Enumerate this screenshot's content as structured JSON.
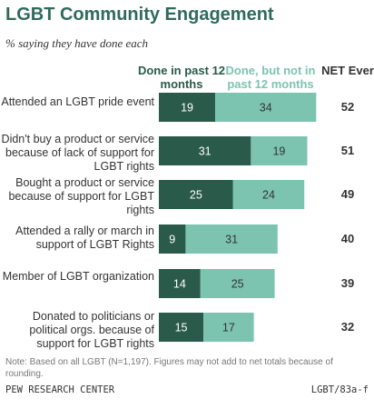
{
  "title": "LGBT Community Engagement",
  "subtitle": "% saying they have done each",
  "legend": {
    "dark": "Done in past 12 months",
    "light": "Done, but not in past 12 months",
    "net": "NET Ever"
  },
  "colors": {
    "dark": "#2a5a4a",
    "light": "#7cc4b0",
    "title": "#2f6b5a"
  },
  "chart_data": {
    "type": "bar",
    "orientation": "horizontal",
    "stacked": true,
    "categories": [
      "Attended an LGBT pride event",
      "Didn't buy a product or service because of lack of support for LGBT rights",
      "Bought a product or service because of support for LGBT rights",
      "Attended a rally or march in support of LGBT Rights",
      "Member of LGBT organization",
      "Donated to politicians or political orgs. because of support for LGBT rights"
    ],
    "series": [
      {
        "name": "Done in past 12 months",
        "values": [
          19,
          31,
          25,
          9,
          14,
          15
        ]
      },
      {
        "name": "Done, but not in past 12 months",
        "values": [
          34,
          19,
          24,
          31,
          25,
          17
        ]
      }
    ],
    "net_ever": [
      52,
      51,
      49,
      40,
      39,
      32
    ]
  },
  "note": "Note: Based on all LGBT (N=1,197). Figures may not add to net totals because of rounding.",
  "source": "PEW RESEARCH CENTER",
  "code": "LGBT/83a-f"
}
